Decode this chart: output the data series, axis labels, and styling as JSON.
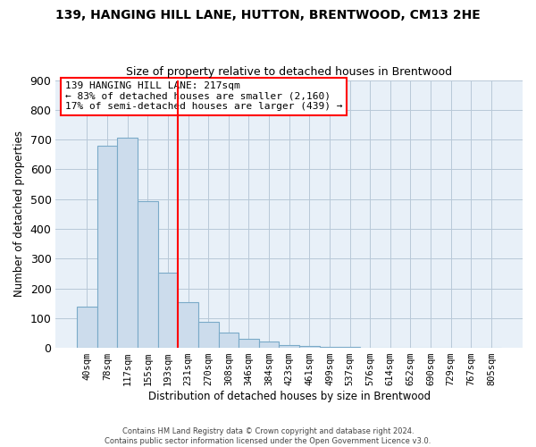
{
  "title": "139, HANGING HILL LANE, HUTTON, BRENTWOOD, CM13 2HE",
  "subtitle": "Size of property relative to detached houses in Brentwood",
  "xlabel": "Distribution of detached houses by size in Brentwood",
  "ylabel": "Number of detached properties",
  "bar_color": "#ccdcec",
  "bar_edge_color": "#7aaac8",
  "plot_bg_color": "#e8f0f8",
  "categories": [
    "40sqm",
    "78sqm",
    "117sqm",
    "155sqm",
    "193sqm",
    "231sqm",
    "270sqm",
    "308sqm",
    "346sqm",
    "384sqm",
    "423sqm",
    "461sqm",
    "499sqm",
    "537sqm",
    "576sqm",
    "614sqm",
    "652sqm",
    "690sqm",
    "729sqm",
    "767sqm",
    "805sqm"
  ],
  "values": [
    138,
    678,
    706,
    493,
    254,
    153,
    87,
    51,
    30,
    20,
    10,
    5,
    3,
    2,
    1,
    1,
    0,
    0,
    1,
    0,
    1
  ],
  "ylim": [
    0,
    900
  ],
  "yticks": [
    0,
    100,
    200,
    300,
    400,
    500,
    600,
    700,
    800,
    900
  ],
  "property_line_label": "139 HANGING HILL LANE: 217sqm",
  "annotation_line1": "← 83% of detached houses are smaller (2,160)",
  "annotation_line2": "17% of semi-detached houses are larger (439) →",
  "footer_line1": "Contains HM Land Registry data © Crown copyright and database right 2024.",
  "footer_line2": "Contains public sector information licensed under the Open Government Licence v3.0.",
  "background_color": "#ffffff",
  "grid_color": "#b8c8d8"
}
